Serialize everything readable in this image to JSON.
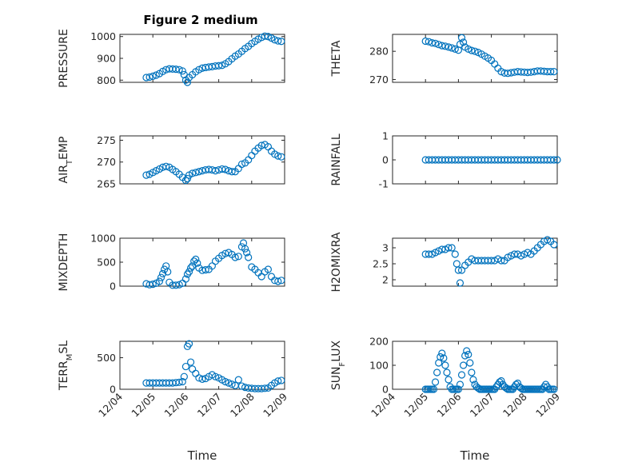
{
  "figure": {
    "title": "Figure 2 medium",
    "marker_color": "#0072BD"
  },
  "chart_data": [
    {
      "type": "scatter",
      "ylabel": "PRESSURE",
      "xlim": [
        4,
        9
      ],
      "xticks": [
        4,
        5,
        6,
        7,
        8,
        9
      ],
      "ylim": [
        790,
        1010
      ],
      "yticks": [
        800,
        900,
        1000
      ],
      "xlabel": "",
      "x": [
        4.8,
        4.9,
        5.0,
        5.1,
        5.2,
        5.3,
        5.4,
        5.5,
        5.6,
        5.7,
        5.8,
        5.9,
        5.95,
        6.0,
        6.05,
        6.1,
        6.2,
        6.3,
        6.4,
        6.5,
        6.6,
        6.7,
        6.8,
        6.9,
        7.0,
        7.1,
        7.2,
        7.3,
        7.4,
        7.5,
        7.6,
        7.7,
        7.8,
        7.9,
        8.0,
        8.1,
        8.2,
        8.3,
        8.4,
        8.5,
        8.6,
        8.7,
        8.8,
        8.9
      ],
      "y": [
        812,
        814,
        818,
        823,
        830,
        840,
        848,
        852,
        851,
        850,
        848,
        842,
        825,
        800,
        790,
        812,
        825,
        838,
        848,
        855,
        858,
        860,
        862,
        865,
        866,
        868,
        875,
        885,
        898,
        910,
        920,
        932,
        945,
        955,
        968,
        978,
        988,
        996,
        1002,
        1000,
        993,
        985,
        980,
        978
      ]
    },
    {
      "type": "scatter",
      "ylabel": "THETA",
      "xlim": [
        4,
        9
      ],
      "xticks": [
        4,
        5,
        6,
        7,
        8,
        9
      ],
      "ylim": [
        269,
        286
      ],
      "yticks": [
        270,
        280
      ],
      "xlabel": "",
      "x": [
        5.0,
        5.1,
        5.2,
        5.3,
        5.4,
        5.5,
        5.6,
        5.7,
        5.8,
        5.9,
        6.0,
        6.05,
        6.1,
        6.15,
        6.2,
        6.3,
        6.4,
        6.5,
        6.6,
        6.7,
        6.8,
        6.9,
        7.0,
        7.1,
        7.2,
        7.3,
        7.4,
        7.5,
        7.6,
        7.7,
        7.8,
        7.9,
        8.0,
        8.1,
        8.2,
        8.3,
        8.4,
        8.5,
        8.6,
        8.7,
        8.8,
        8.9
      ],
      "y": [
        283.6,
        283.4,
        283.0,
        282.8,
        282.4,
        282.0,
        281.8,
        281.5,
        281.2,
        280.8,
        280.4,
        282.5,
        284.8,
        283.2,
        281.5,
        280.8,
        280.3,
        280.0,
        279.6,
        279.0,
        278.3,
        277.6,
        276.8,
        275.5,
        274.0,
        272.8,
        272.3,
        272.2,
        272.4,
        272.6,
        272.8,
        272.7,
        272.6,
        272.5,
        272.6,
        272.8,
        273.0,
        273.0,
        272.9,
        272.8,
        272.8,
        272.8
      ]
    },
    {
      "type": "scatter",
      "ylabel": "AIR_TEMP",
      "xlim": [
        4,
        9
      ],
      "xticks": [
        4,
        5,
        6,
        7,
        8,
        9
      ],
      "ylim": [
        265,
        276
      ],
      "yticks": [
        265,
        270,
        275
      ],
      "xlabel": "",
      "x": [
        4.8,
        4.9,
        5.0,
        5.1,
        5.2,
        5.3,
        5.4,
        5.5,
        5.6,
        5.7,
        5.8,
        5.9,
        6.0,
        6.05,
        6.1,
        6.2,
        6.3,
        6.4,
        6.5,
        6.6,
        6.7,
        6.8,
        6.9,
        7.0,
        7.1,
        7.2,
        7.3,
        7.4,
        7.5,
        7.6,
        7.7,
        7.8,
        7.9,
        8.0,
        8.1,
        8.2,
        8.3,
        8.4,
        8.5,
        8.6,
        8.7,
        8.8,
        8.9
      ],
      "y": [
        267.0,
        267.2,
        267.6,
        268.0,
        268.4,
        268.8,
        269.0,
        268.8,
        268.3,
        267.8,
        267.2,
        266.5,
        265.8,
        266.2,
        267.0,
        267.4,
        267.6,
        267.8,
        268.0,
        268.2,
        268.3,
        268.2,
        268.0,
        268.2,
        268.4,
        268.3,
        268.0,
        267.8,
        267.8,
        268.5,
        269.5,
        269.8,
        270.5,
        271.5,
        272.5,
        273.2,
        273.8,
        274.0,
        273.5,
        272.5,
        271.8,
        271.4,
        271.2
      ]
    },
    {
      "type": "scatter",
      "ylabel": "RAINFALL",
      "xlim": [
        4,
        9
      ],
      "xticks": [
        4,
        5,
        6,
        7,
        8,
        9
      ],
      "ylim": [
        -1,
        1
      ],
      "yticks": [
        -1,
        0,
        1
      ],
      "xlabel": "",
      "x": [
        5.0,
        5.1,
        5.2,
        5.3,
        5.4,
        5.5,
        5.6,
        5.7,
        5.8,
        5.9,
        6.0,
        6.1,
        6.2,
        6.3,
        6.4,
        6.5,
        6.6,
        6.7,
        6.8,
        6.9,
        7.0,
        7.1,
        7.2,
        7.3,
        7.4,
        7.5,
        7.6,
        7.7,
        7.8,
        7.9,
        8.0,
        8.1,
        8.2,
        8.3,
        8.4,
        8.5,
        8.6,
        8.7,
        8.8,
        8.9,
        9.0
      ],
      "y": [
        0,
        0,
        0,
        0,
        0,
        0,
        0,
        0,
        0,
        0,
        0,
        0,
        0,
        0,
        0,
        0,
        0,
        0,
        0,
        0,
        0,
        0,
        0,
        0,
        0,
        0,
        0,
        0,
        0,
        0,
        0,
        0,
        0,
        0,
        0,
        0,
        0,
        0,
        0,
        0,
        0
      ]
    },
    {
      "type": "scatter",
      "ylabel": "MIXDEPTH",
      "xlim": [
        4,
        9
      ],
      "xticks": [
        4,
        5,
        6,
        7,
        8,
        9
      ],
      "ylim": [
        0,
        1000
      ],
      "yticks": [
        0,
        500,
        1000
      ],
      "xlabel": "",
      "x": [
        4.8,
        4.9,
        5.0,
        5.1,
        5.2,
        5.25,
        5.3,
        5.35,
        5.4,
        5.45,
        5.5,
        5.6,
        5.7,
        5.8,
        5.9,
        6.0,
        6.05,
        6.1,
        6.15,
        6.2,
        6.25,
        6.3,
        6.35,
        6.4,
        6.5,
        6.6,
        6.7,
        6.8,
        6.9,
        7.0,
        7.1,
        7.2,
        7.3,
        7.4,
        7.5,
        7.6,
        7.7,
        7.75,
        7.8,
        7.85,
        7.9,
        8.0,
        8.1,
        8.2,
        8.3,
        8.4,
        8.5,
        8.6,
        8.7,
        8.8,
        8.9
      ],
      "y": [
        50,
        30,
        40,
        60,
        100,
        180,
        260,
        350,
        420,
        300,
        80,
        20,
        20,
        30,
        60,
        150,
        250,
        300,
        380,
        420,
        520,
        560,
        480,
        380,
        330,
        340,
        350,
        420,
        520,
        580,
        640,
        680,
        700,
        660,
        600,
        620,
        820,
        900,
        780,
        700,
        600,
        400,
        350,
        280,
        200,
        300,
        350,
        200,
        120,
        100,
        120
      ]
    },
    {
      "type": "scatter",
      "ylabel": "H2OMIXRA",
      "xlim": [
        4,
        9
      ],
      "xticks": [
        4,
        5,
        6,
        7,
        8,
        9
      ],
      "ylim": [
        1.8,
        3.3
      ],
      "yticks": [
        2,
        2.5,
        3
      ],
      "xlabel": "",
      "x": [
        5.0,
        5.1,
        5.2,
        5.3,
        5.4,
        5.5,
        5.6,
        5.7,
        5.8,
        5.9,
        5.95,
        6.0,
        6.05,
        6.1,
        6.2,
        6.3,
        6.4,
        6.5,
        6.6,
        6.7,
        6.8,
        6.9,
        7.0,
        7.1,
        7.2,
        7.3,
        7.4,
        7.5,
        7.6,
        7.7,
        7.8,
        7.9,
        8.0,
        8.1,
        8.2,
        8.3,
        8.4,
        8.5,
        8.6,
        8.7,
        8.8,
        8.9
      ],
      "y": [
        2.8,
        2.8,
        2.8,
        2.85,
        2.9,
        2.95,
        2.95,
        3.0,
        3.0,
        2.8,
        2.5,
        2.3,
        1.9,
        2.3,
        2.45,
        2.55,
        2.65,
        2.6,
        2.6,
        2.6,
        2.6,
        2.6,
        2.6,
        2.6,
        2.65,
        2.6,
        2.6,
        2.7,
        2.75,
        2.8,
        2.8,
        2.75,
        2.8,
        2.85,
        2.8,
        2.9,
        3.0,
        3.1,
        3.2,
        3.25,
        3.2,
        3.1
      ]
    },
    {
      "type": "scatter",
      "ylabel": "TERR_MSL",
      "xlim": [
        4,
        9
      ],
      "xticks": [
        4,
        5,
        6,
        7,
        8,
        9
      ],
      "ylim": [
        0,
        760
      ],
      "yticks": [
        0,
        500
      ],
      "xlabel": "Time",
      "xticklabels": [
        "12/04",
        "12/05",
        "12/06",
        "12/07",
        "12/08",
        "12/09"
      ],
      "x": [
        4.8,
        4.9,
        5.0,
        5.1,
        5.2,
        5.3,
        5.4,
        5.5,
        5.6,
        5.7,
        5.8,
        5.9,
        5.95,
        6.0,
        6.05,
        6.1,
        6.15,
        6.2,
        6.3,
        6.4,
        6.5,
        6.6,
        6.7,
        6.8,
        6.9,
        7.0,
        7.1,
        7.2,
        7.3,
        7.4,
        7.5,
        7.6,
        7.7,
        7.8,
        7.9,
        8.0,
        8.1,
        8.2,
        8.3,
        8.4,
        8.5,
        8.6,
        8.7,
        8.8,
        8.9
      ],
      "y": [
        100,
        100,
        100,
        100,
        100,
        100,
        100,
        100,
        100,
        105,
        110,
        120,
        200,
        360,
        680,
        720,
        430,
        320,
        250,
        180,
        160,
        170,
        200,
        230,
        200,
        180,
        150,
        120,
        100,
        80,
        60,
        150,
        50,
        30,
        20,
        15,
        10,
        10,
        10,
        15,
        20,
        60,
        100,
        130,
        140
      ]
    },
    {
      "type": "scatter",
      "ylabel": "SUN_FLUX",
      "xlim": [
        4,
        9
      ],
      "xticks": [
        4,
        5,
        6,
        7,
        8,
        9
      ],
      "ylim": [
        0,
        200
      ],
      "yticks": [
        0,
        100,
        200
      ],
      "xlabel": "Time",
      "xticklabels": [
        "12/04",
        "12/05",
        "12/06",
        "12/07",
        "12/08",
        "12/09"
      ],
      "x": [
        5.0,
        5.05,
        5.1,
        5.15,
        5.2,
        5.25,
        5.3,
        5.35,
        5.4,
        5.45,
        5.5,
        5.55,
        5.6,
        5.65,
        5.7,
        5.75,
        5.8,
        5.85,
        5.9,
        5.95,
        6.0,
        6.05,
        6.1,
        6.15,
        6.2,
        6.25,
        6.3,
        6.35,
        6.4,
        6.45,
        6.5,
        6.55,
        6.6,
        6.65,
        6.7,
        6.75,
        6.8,
        6.85,
        6.9,
        6.95,
        7.0,
        7.05,
        7.1,
        7.15,
        7.2,
        7.25,
        7.3,
        7.35,
        7.4,
        7.45,
        7.5,
        7.55,
        7.6,
        7.65,
        7.7,
        7.75,
        7.8,
        7.85,
        7.9,
        7.95,
        8.0,
        8.05,
        8.1,
        8.15,
        8.2,
        8.25,
        8.3,
        8.35,
        8.4,
        8.45,
        8.5,
        8.55,
        8.6,
        8.65,
        8.7,
        8.75,
        8.8,
        8.85,
        8.9
      ],
      "y": [
        0,
        0,
        0,
        0,
        0,
        0,
        30,
        70,
        110,
        135,
        150,
        130,
        100,
        70,
        40,
        10,
        0,
        0,
        0,
        0,
        0,
        20,
        60,
        100,
        140,
        160,
        145,
        110,
        70,
        40,
        20,
        10,
        5,
        0,
        0,
        0,
        0,
        0,
        0,
        0,
        0,
        0,
        0,
        10,
        20,
        30,
        35,
        20,
        10,
        5,
        0,
        0,
        0,
        0,
        10,
        20,
        25,
        10,
        5,
        0,
        0,
        0,
        0,
        0,
        0,
        0,
        0,
        0,
        0,
        0,
        0,
        0,
        10,
        20,
        10,
        0,
        0,
        0,
        0
      ]
    }
  ]
}
